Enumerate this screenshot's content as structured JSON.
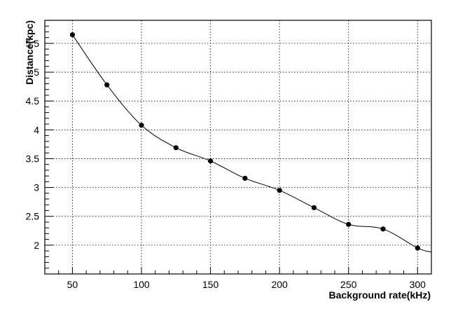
{
  "chart_data": {
    "type": "line",
    "title": "",
    "xlabel": "Background rate(kHz)",
    "ylabel": "Distance(kpc)",
    "xlim": [
      30,
      310
    ],
    "ylim": [
      1.5,
      5.9
    ],
    "x_major_ticks": [
      50,
      100,
      150,
      200,
      250,
      300
    ],
    "x_tick_labels": [
      "50",
      "100",
      "150",
      "200",
      "250",
      "300"
    ],
    "y_major_ticks": [
      2,
      2.5,
      3,
      3.5,
      4,
      4.5,
      5,
      5.5
    ],
    "y_tick_labels": [
      "2",
      "2.5",
      "3",
      "3.5",
      "4",
      "4.5",
      "5",
      "5.5"
    ],
    "grid": true,
    "series": [
      {
        "x": [
          50,
          75,
          100,
          125,
          150,
          175,
          200,
          225,
          250,
          275,
          300
        ],
        "y": [
          5.65,
          4.78,
          4.08,
          3.69,
          3.46,
          3.16,
          2.95,
          2.65,
          2.36,
          2.28,
          1.95
        ],
        "marker": "circle",
        "color": "#000000",
        "line_extends_to": [
          310,
          1.88
        ]
      }
    ]
  }
}
